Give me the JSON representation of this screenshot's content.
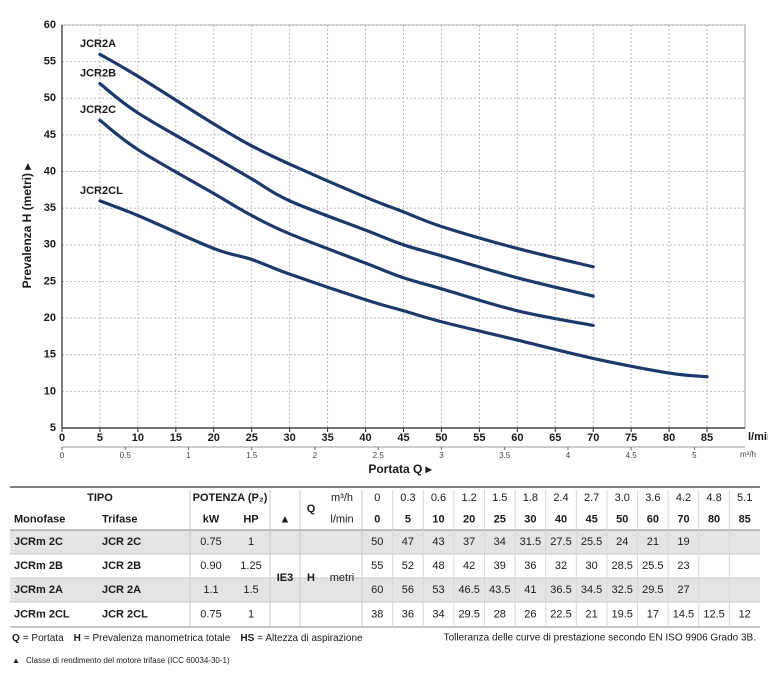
{
  "chart_data": {
    "type": "line",
    "ylabel": "Prevalenza H (metri) ▸",
    "xlabel": "Portata Q ▸",
    "xunit": "l/min",
    "x2unit": "m³/h",
    "x": [
      5,
      10,
      20,
      25,
      30,
      40,
      45,
      50,
      60,
      70,
      80,
      85
    ],
    "series": [
      {
        "name": "JCR2A",
        "color": "#1b3a6b",
        "values": [
          56,
          53,
          46.5,
          43.5,
          41,
          36.5,
          34.5,
          32.5,
          29.5,
          27,
          null,
          null
        ]
      },
      {
        "name": "JCR2B",
        "color": "#1b3a6b",
        "values": [
          52,
          48,
          42,
          39,
          36,
          32,
          30,
          28.5,
          25.5,
          23,
          null,
          null
        ]
      },
      {
        "name": "JCR2C",
        "color": "#1b3a6b",
        "values": [
          47,
          43,
          37,
          34,
          31.5,
          27.5,
          25.5,
          24,
          21,
          19,
          null,
          null
        ]
      },
      {
        "name": "JCR2CL",
        "color": "#1b3a6b",
        "values": [
          36,
          34,
          29.5,
          28,
          26,
          22.5,
          21,
          19.5,
          17,
          14.5,
          12.5,
          12
        ]
      }
    ],
    "xlim": [
      0,
      90
    ],
    "xticks": [
      0,
      5,
      10,
      15,
      20,
      25,
      30,
      35,
      40,
      45,
      50,
      55,
      60,
      65,
      70,
      75,
      80,
      85
    ],
    "x2lim": [
      0,
      5.4
    ],
    "x2ticks": [
      0,
      0.5,
      1,
      1.5,
      2,
      2.5,
      3,
      3.5,
      4,
      4.5,
      5
    ],
    "ylim": [
      5,
      60
    ],
    "yticks": [
      5,
      10,
      15,
      20,
      25,
      30,
      35,
      40,
      45,
      50,
      55,
      60
    ],
    "grid": true
  },
  "table": {
    "header": {
      "tipo": "TIPO",
      "potenza": "POTENZA (P₂)",
      "q": "Q",
      "m3h": "m³/h",
      "lmin": "l/min",
      "monofase": "Monofase",
      "trifase": "Trifase",
      "kw": "kW",
      "hp": "HP",
      "triangle": "▲",
      "ie3": "IE3",
      "h": "H",
      "metri": "metri"
    },
    "flow_m3h": [
      0,
      0.3,
      0.6,
      1.2,
      1.5,
      1.8,
      2.4,
      2.7,
      "3.0",
      3.6,
      4.2,
      4.8,
      5.1
    ],
    "flow_lmin": [
      0,
      5,
      10,
      20,
      25,
      30,
      40,
      45,
      50,
      60,
      70,
      80,
      85
    ],
    "rows": [
      {
        "monofase": "JCRm 2C",
        "trifase": "JCR 2C",
        "kw": 0.75,
        "hp": 1,
        "head": [
          50,
          47,
          43,
          37,
          34,
          31.5,
          27.5,
          25.5,
          24,
          21,
          19,
          null,
          null
        ]
      },
      {
        "monofase": "JCRm 2B",
        "trifase": "JCR 2B",
        "kw": "0.90",
        "hp": 1.25,
        "head": [
          55,
          52,
          48,
          42,
          39,
          36,
          32,
          30,
          28.5,
          25.5,
          23,
          null,
          null
        ]
      },
      {
        "monofase": "JCRm 2A",
        "trifase": "JCR 2A",
        "kw": 1.1,
        "hp": 1.5,
        "head": [
          60,
          56,
          53,
          46.5,
          43.5,
          41,
          36.5,
          34.5,
          32.5,
          29.5,
          27,
          null,
          null
        ]
      },
      {
        "monofase": "JCRm 2CL",
        "trifase": "JCR 2CL",
        "kw": 0.75,
        "hp": 1,
        "head": [
          38,
          36,
          34,
          29.5,
          28,
          26,
          22.5,
          21,
          19.5,
          17,
          14.5,
          12.5,
          12
        ]
      }
    ]
  },
  "footer": {
    "legend": [
      {
        "key": "Q",
        "text": "= Portata"
      },
      {
        "key": "H",
        "text": "= Prevalenza manometrica totale"
      },
      {
        "key": "HS",
        "text": "= Altezza di aspirazione"
      }
    ],
    "tolerance": "Tolleranza delle curve di prestazione secondo EN ISO 9906 Grado 3B.",
    "note_symbol": "▲",
    "note": "Classe di rendimento del motore trifase (ICC 60034-30-1)"
  }
}
